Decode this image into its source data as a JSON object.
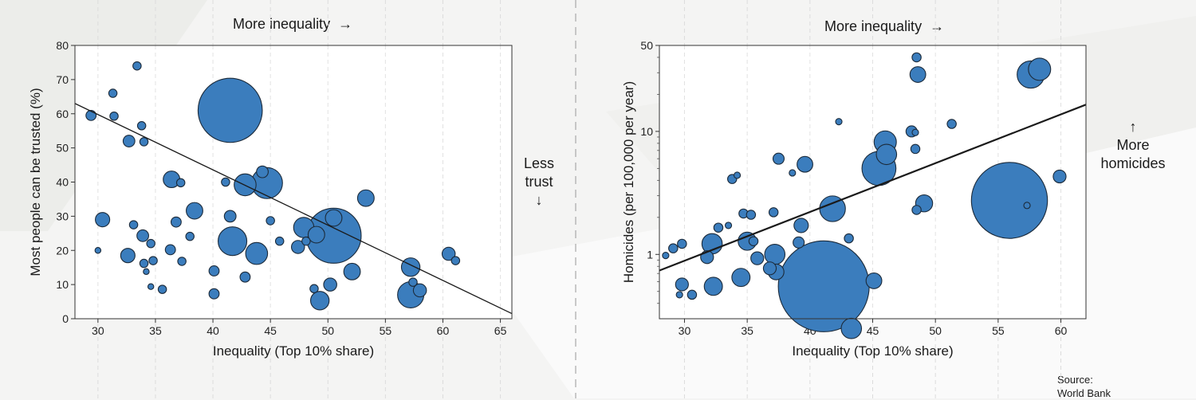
{
  "colors": {
    "bubble_fill": "#3b7dbd",
    "bubble_stroke": "#1b2a3a",
    "background": "#f4f4f3",
    "plot_bg": "#ffffff",
    "line": "#1a1a1a"
  },
  "left_top_label": "More inequality",
  "left_top_arrow": "→",
  "left_side_annotation": [
    "Less",
    "trust",
    "↓"
  ],
  "right_top_label": "More inequality",
  "right_top_arrow": "→",
  "right_side_annotation": [
    "↑",
    "More",
    "homicides"
  ],
  "source": [
    "Source:",
    "World Bank"
  ],
  "chart_data": [
    {
      "type": "scatter",
      "title": "",
      "xlabel": "Inequality (Top 10% share)",
      "ylabel": "Most people can be trusted (%)",
      "xlim": [
        28,
        66
      ],
      "ylim": [
        0,
        80
      ],
      "xticks": [
        30,
        35,
        40,
        45,
        50,
        55,
        60,
        65
      ],
      "yticks": [
        0,
        10,
        20,
        30,
        40,
        50,
        60,
        70,
        80
      ],
      "grid": true,
      "trend_line": [
        [
          28,
          63
        ],
        [
          66,
          1.5
        ]
      ],
      "points": [
        {
          "x": 29.4,
          "y": 59.5,
          "size": 1.5
        },
        {
          "x": 31.3,
          "y": 66,
          "size": 1
        },
        {
          "x": 31.4,
          "y": 59.3,
          "size": 1
        },
        {
          "x": 33.4,
          "y": 74,
          "size": 1
        },
        {
          "x": 33.8,
          "y": 56.5,
          "size": 1
        },
        {
          "x": 34,
          "y": 51.8,
          "size": 1
        },
        {
          "x": 32.7,
          "y": 52,
          "size": 2
        },
        {
          "x": 30.4,
          "y": 29,
          "size": 3
        },
        {
          "x": 30,
          "y": 20,
          "size": 0.5
        },
        {
          "x": 32.6,
          "y": 18.5,
          "size": 3
        },
        {
          "x": 33.1,
          "y": 27.5,
          "size": 1
        },
        {
          "x": 33.9,
          "y": 24.3,
          "size": 2
        },
        {
          "x": 34.6,
          "y": 22,
          "size": 1
        },
        {
          "x": 34,
          "y": 16.2,
          "size": 1
        },
        {
          "x": 34.8,
          "y": 17,
          "size": 1
        },
        {
          "x": 34.2,
          "y": 13.8,
          "size": 0.5
        },
        {
          "x": 34.6,
          "y": 9.4,
          "size": 0.5
        },
        {
          "x": 35.6,
          "y": 8.6,
          "size": 1
        },
        {
          "x": 36.3,
          "y": 20.2,
          "size": 1.5
        },
        {
          "x": 36.8,
          "y": 28.3,
          "size": 1.5
        },
        {
          "x": 37.3,
          "y": 16.8,
          "size": 1
        },
        {
          "x": 38.4,
          "y": 31.6,
          "size": 4
        },
        {
          "x": 38,
          "y": 24.1,
          "size": 1
        },
        {
          "x": 36.4,
          "y": 40.8,
          "size": 4
        },
        {
          "x": 37.2,
          "y": 39.8,
          "size": 1
        },
        {
          "x": 40.1,
          "y": 14,
          "size": 1.5
        },
        {
          "x": 40.1,
          "y": 7.3,
          "size": 1.5
        },
        {
          "x": 41.5,
          "y": 61,
          "size": 60
        },
        {
          "x": 41.1,
          "y": 40,
          "size": 1
        },
        {
          "x": 41.5,
          "y": 30,
          "size": 2
        },
        {
          "x": 41.7,
          "y": 22.7,
          "size": 12
        },
        {
          "x": 42.8,
          "y": 39.2,
          "size": 7
        },
        {
          "x": 42.8,
          "y": 12.2,
          "size": 1.5
        },
        {
          "x": 43.8,
          "y": 19.1,
          "size": 7
        },
        {
          "x": 44.3,
          "y": 43,
          "size": 2
        },
        {
          "x": 44.7,
          "y": 39.7,
          "size": 14
        },
        {
          "x": 45,
          "y": 28.7,
          "size": 1
        },
        {
          "x": 45.8,
          "y": 22.7,
          "size": 1
        },
        {
          "x": 47.4,
          "y": 21,
          "size": 2.5
        },
        {
          "x": 47.9,
          "y": 26.7,
          "size": 6
        },
        {
          "x": 48.1,
          "y": 22.7,
          "size": 1
        },
        {
          "x": 48.8,
          "y": 8.8,
          "size": 1
        },
        {
          "x": 49,
          "y": 24.6,
          "size": 4
        },
        {
          "x": 49.3,
          "y": 5.3,
          "size": 5
        },
        {
          "x": 50.2,
          "y": 10,
          "size": 2.5
        },
        {
          "x": 50.5,
          "y": 29.5,
          "size": 4
        },
        {
          "x": 50.5,
          "y": 24.3,
          "size": 44
        },
        {
          "x": 52.1,
          "y": 13.8,
          "size": 4
        },
        {
          "x": 53.3,
          "y": 35.3,
          "size": 4
        },
        {
          "x": 57.2,
          "y": 15.1,
          "size": 5
        },
        {
          "x": 57.4,
          "y": 10.7,
          "size": 1
        },
        {
          "x": 57.2,
          "y": 7,
          "size": 10
        },
        {
          "x": 58,
          "y": 8.3,
          "size": 2.5
        },
        {
          "x": 60.5,
          "y": 19,
          "size": 2.5
        },
        {
          "x": 61.1,
          "y": 17,
          "size": 1
        }
      ]
    },
    {
      "type": "scatter",
      "title": "",
      "xlabel": "Inequality (Top 10% share)",
      "ylabel": "Homicides (per 100,000 per year)",
      "xlim": [
        28,
        62
      ],
      "ylim": [
        0.3,
        50
      ],
      "yscale": "log",
      "xticks": [
        30,
        35,
        40,
        45,
        50,
        55,
        60
      ],
      "yticks": [
        1,
        10,
        50
      ],
      "grid": true,
      "trend_line": [
        [
          28,
          0.74
        ],
        [
          62,
          16.5
        ]
      ],
      "points": [
        {
          "x": 28.5,
          "y": 0.98,
          "size": 0.5
        },
        {
          "x": 29.1,
          "y": 1.12,
          "size": 1
        },
        {
          "x": 29.8,
          "y": 1.22,
          "size": 1
        },
        {
          "x": 29.8,
          "y": 0.57,
          "size": 2
        },
        {
          "x": 30.6,
          "y": 0.47,
          "size": 1
        },
        {
          "x": 29.6,
          "y": 0.47,
          "size": 0.5
        },
        {
          "x": 31.8,
          "y": 0.95,
          "size": 2
        },
        {
          "x": 32.2,
          "y": 1.22,
          "size": 5
        },
        {
          "x": 32.3,
          "y": 0.55,
          "size": 4
        },
        {
          "x": 32.7,
          "y": 1.65,
          "size": 1
        },
        {
          "x": 33.5,
          "y": 1.72,
          "size": 0.5
        },
        {
          "x": 33.8,
          "y": 4.1,
          "size": 1
        },
        {
          "x": 34.2,
          "y": 4.4,
          "size": 0.5
        },
        {
          "x": 34.5,
          "y": 0.65,
          "size": 4
        },
        {
          "x": 34.7,
          "y": 2.15,
          "size": 1
        },
        {
          "x": 35,
          "y": 1.28,
          "size": 4
        },
        {
          "x": 35.5,
          "y": 1.28,
          "size": 1
        },
        {
          "x": 35.3,
          "y": 2.1,
          "size": 1
        },
        {
          "x": 35.8,
          "y": 0.93,
          "size": 2
        },
        {
          "x": 36.8,
          "y": 0.77,
          "size": 2
        },
        {
          "x": 37.3,
          "y": 0.72,
          "size": 3
        },
        {
          "x": 37.2,
          "y": 1.0,
          "size": 5
        },
        {
          "x": 37.1,
          "y": 2.2,
          "size": 1
        },
        {
          "x": 37.5,
          "y": 6,
          "size": 1.5
        },
        {
          "x": 38.6,
          "y": 4.6,
          "size": 0.5
        },
        {
          "x": 39.1,
          "y": 1.25,
          "size": 1.5
        },
        {
          "x": 39.3,
          "y": 1.72,
          "size": 2.5
        },
        {
          "x": 39.6,
          "y": 5.4,
          "size": 3
        },
        {
          "x": 41.1,
          "y": 0.55,
          "size": 100
        },
        {
          "x": 41.8,
          "y": 2.35,
          "size": 8
        },
        {
          "x": 42.3,
          "y": 12,
          "size": 0.5
        },
        {
          "x": 43.1,
          "y": 1.35,
          "size": 1
        },
        {
          "x": 43.3,
          "y": 0.25,
          "size": 5
        },
        {
          "x": 45.1,
          "y": 0.61,
          "size": 3
        },
        {
          "x": 45.5,
          "y": 5,
          "size": 14
        },
        {
          "x": 46.1,
          "y": 6.5,
          "size": 5
        },
        {
          "x": 46,
          "y": 8.2,
          "size": 6
        },
        {
          "x": 48.1,
          "y": 10,
          "size": 1.5
        },
        {
          "x": 48.4,
          "y": 9.8,
          "size": 0.5
        },
        {
          "x": 48.4,
          "y": 7.2,
          "size": 1
        },
        {
          "x": 48.5,
          "y": 2.3,
          "size": 1
        },
        {
          "x": 49.1,
          "y": 2.6,
          "size": 3.5
        },
        {
          "x": 48.5,
          "y": 40,
          "size": 1
        },
        {
          "x": 48.6,
          "y": 29,
          "size": 3
        },
        {
          "x": 51.3,
          "y": 11.5,
          "size": 1
        },
        {
          "x": 55.9,
          "y": 2.75,
          "size": 70
        },
        {
          "x": 57.3,
          "y": 2.5,
          "size": 0.5
        },
        {
          "x": 57.6,
          "y": 29,
          "size": 9
        },
        {
          "x": 58.3,
          "y": 32,
          "size": 6
        },
        {
          "x": 59.9,
          "y": 4.3,
          "size": 2
        }
      ]
    }
  ]
}
